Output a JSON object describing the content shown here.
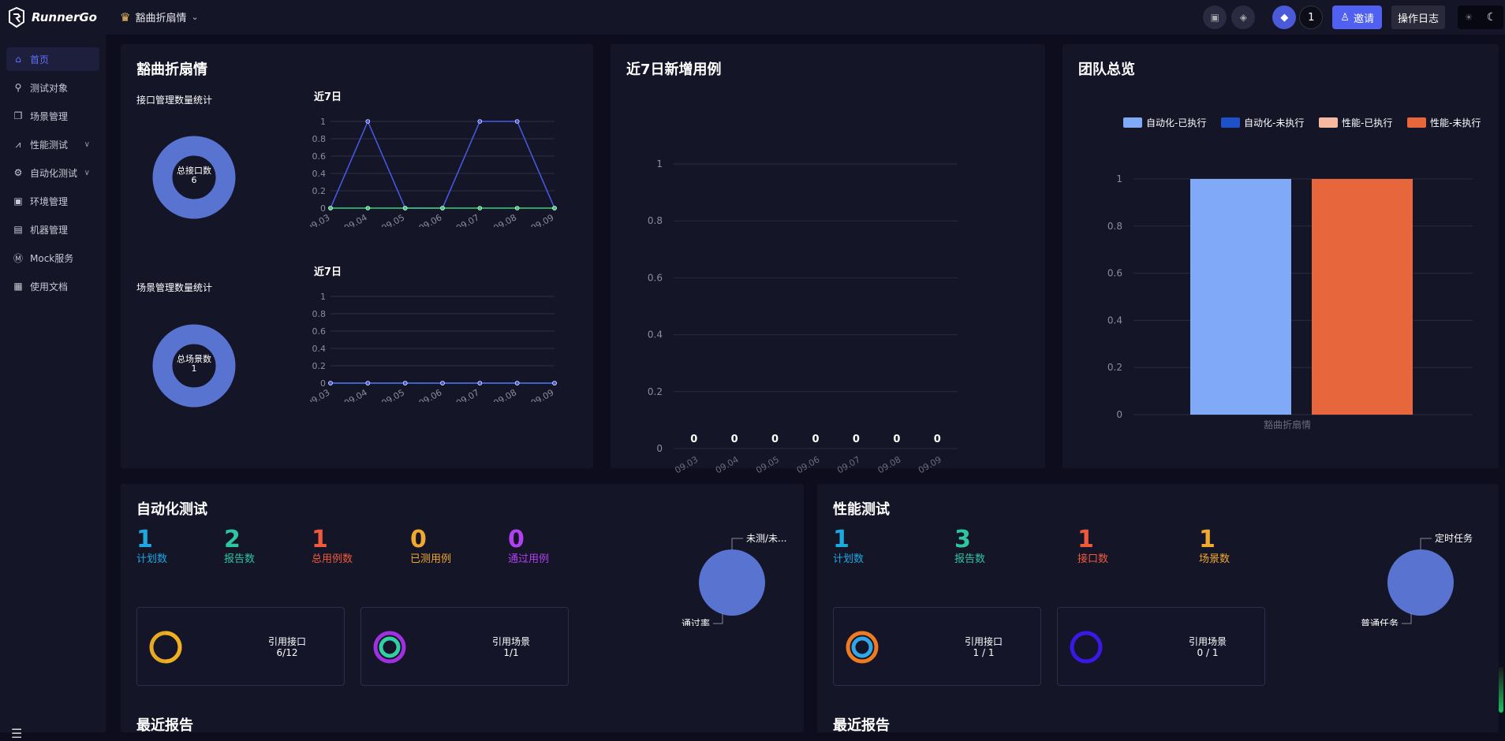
{
  "brand": {
    "name": "RunnerGo"
  },
  "header": {
    "team_name": "豁曲折扇情",
    "notification_count": "1",
    "invite_label": "邀请",
    "log_label": "操作日志",
    "icons": [
      "crown-icon",
      "doc-icon",
      "cube-icon",
      "user-icon",
      "sun-icon",
      "moon-icon"
    ]
  },
  "sidebar": {
    "items": [
      {
        "label": "首页",
        "icon": "home-icon",
        "active": true
      },
      {
        "label": "测试对象",
        "icon": "link-icon"
      },
      {
        "label": "场景管理",
        "icon": "layers-icon"
      },
      {
        "label": "性能测试",
        "icon": "chart-icon",
        "expandable": true
      },
      {
        "label": "自动化测试",
        "icon": "gears-icon",
        "expandable": true
      },
      {
        "label": "环境管理",
        "icon": "env-icon"
      },
      {
        "label": "机器管理",
        "icon": "server-icon"
      },
      {
        "label": "Mock服务",
        "icon": "mock-icon"
      },
      {
        "label": "使用文档",
        "icon": "docs-icon"
      }
    ]
  },
  "team_card": {
    "title": "豁曲折扇情",
    "api_stats_label": "接口管理数量统计",
    "api_total_label": "总接口数",
    "api_total": "6",
    "scene_stats_label": "场景管理数量统计",
    "scene_total_label": "总场景数",
    "scene_total": "1",
    "recent_label": "近7日"
  },
  "new_cases_card": {
    "title": "近7日新增用例"
  },
  "overview_card": {
    "title": "团队总览"
  },
  "chart_data": [
    {
      "type": "line",
      "title": "近7日",
      "x": [
        "09.03",
        "09.04",
        "09.05",
        "09.06",
        "09.07",
        "09.08",
        "09.09"
      ],
      "ylim": [
        0,
        1
      ],
      "yticks": [
        "0",
        "0.2",
        "0.4",
        "0.6",
        "0.8",
        "1"
      ],
      "series": [
        {
          "values": [
            0,
            1,
            0,
            0,
            1,
            1,
            0
          ],
          "color": "#4a5ae8"
        },
        {
          "values": [
            0,
            0,
            0,
            0,
            0,
            0,
            0
          ],
          "color": "#3ecf7a"
        }
      ],
      "grid": true
    },
    {
      "type": "line",
      "title": "近7日",
      "x": [
        "09.03",
        "09.04",
        "09.05",
        "09.06",
        "09.07",
        "09.08",
        "09.09"
      ],
      "ylim": [
        0,
        1
      ],
      "yticks": [
        "0",
        "0.2",
        "0.4",
        "0.6",
        "0.8",
        "1"
      ],
      "series": [
        {
          "values": [
            0,
            0,
            0,
            0,
            0,
            0,
            0
          ],
          "color": "#3ecf7a"
        },
        {
          "values": [
            0,
            0,
            0,
            0,
            0,
            0,
            0
          ],
          "color": "#4a5ae8"
        }
      ],
      "grid": true
    },
    {
      "type": "bar",
      "x": [
        "09.03",
        "09.04",
        "09.05",
        "09.06",
        "09.07",
        "09.08",
        "09.09"
      ],
      "values": [
        0,
        0,
        0,
        0,
        0,
        0,
        0
      ],
      "data_labels": [
        "0",
        "0",
        "0",
        "0",
        "0",
        "0",
        "0"
      ],
      "ylim": [
        0,
        1
      ],
      "yticks": [
        "0",
        "0.2",
        "0.4",
        "0.6",
        "0.8",
        "1"
      ],
      "grid": true
    },
    {
      "type": "bar",
      "categories": [
        "豁曲折扇情"
      ],
      "series": [
        {
          "name": "自动化-已执行",
          "values": [
            1
          ],
          "color": "#80aaf8"
        },
        {
          "name": "自动化-未执行",
          "values": [
            0
          ],
          "color": "#1e50c8"
        },
        {
          "name": "性能-已执行",
          "values": [
            0
          ],
          "color": "#f5b8a0"
        },
        {
          "name": "性能-未执行",
          "values": [
            1
          ],
          "color": "#e8663c"
        }
      ],
      "ylim": [
        0,
        1
      ],
      "yticks": [
        "0",
        "0.2",
        "0.4",
        "0.6",
        "0.8",
        "1"
      ],
      "legend": "top",
      "grid": true
    },
    {
      "type": "pie",
      "labels": [
        "未测/未...",
        "通过率"
      ],
      "values": [
        1,
        0
      ],
      "color": "#5874d0"
    },
    {
      "type": "pie",
      "labels": [
        "定时任务",
        "普通任务"
      ],
      "values": [
        0,
        1
      ],
      "color": "#5874d0"
    }
  ],
  "auto_card": {
    "title": "自动化测试",
    "stats": [
      {
        "value": "1",
        "label": "计划数",
        "color": "#1ea8e0"
      },
      {
        "value": "2",
        "label": "报告数",
        "color": "#2ec6a0"
      },
      {
        "value": "1",
        "label": "总用例数",
        "color": "#f05a3c"
      },
      {
        "value": "0",
        "label": "已测用例",
        "color": "#f0a830"
      },
      {
        "value": "0",
        "label": "通过用例",
        "color": "#b040f0"
      }
    ],
    "ref_api_label": "引用接口",
    "ref_api_value": "6/12",
    "ref_scene_label": "引用场景",
    "ref_scene_value": "1/1",
    "recent_reports": "最近报告"
  },
  "perf_card": {
    "title": "性能测试",
    "stats": [
      {
        "value": "1",
        "label": "计划数",
        "color": "#1ea8e0"
      },
      {
        "value": "3",
        "label": "报告数",
        "color": "#2ec6a0"
      },
      {
        "value": "1",
        "label": "接口数",
        "color": "#f05a3c"
      },
      {
        "value": "1",
        "label": "场景数",
        "color": "#f0a830"
      }
    ],
    "ref_api_label": "引用接口",
    "ref_api_value": "1 / 1",
    "ref_scene_label": "引用场景",
    "ref_scene_value": "0 / 1",
    "recent_reports": "最近报告"
  }
}
